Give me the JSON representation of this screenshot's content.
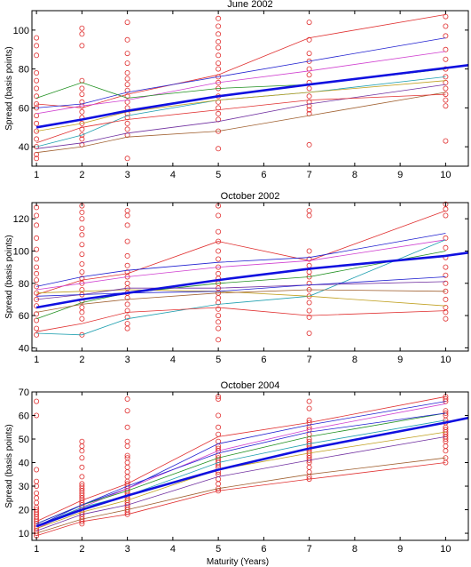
{
  "figure": {
    "xlabel": "Maturity (Years)",
    "colors": {
      "observed": "#e03030",
      "mean_fit": "#1010e0",
      "series": [
        "#e03030",
        "#2020d0",
        "#d040d0",
        "#209020",
        "#20a0b0",
        "#c0a020",
        "#7030a0",
        "#a06030"
      ]
    }
  },
  "chart_data": [
    {
      "type": "line",
      "title": "June 2002",
      "ylabel": "Spread (basis points)",
      "xlim": [
        0.9,
        10.5
      ],
      "ylim": [
        30,
        110
      ],
      "x_ticks": [
        1,
        2,
        3,
        4,
        5,
        6,
        7,
        8,
        9,
        10
      ],
      "y_ticks": [
        40,
        60,
        80,
        100
      ],
      "maturities": [
        1,
        2,
        3,
        5,
        7,
        10
      ],
      "mean_curve": {
        "x": [
          1,
          2,
          3,
          5,
          7,
          10,
          10.5
        ],
        "y": [
          50,
          54,
          58.5,
          66,
          72,
          80.5,
          82
        ]
      },
      "series": [
        {
          "values": [
            62,
            60,
            67,
            77,
            96,
            108
          ]
        },
        {
          "values": [
            60,
            62,
            68,
            76,
            84,
            96
          ]
        },
        {
          "values": [
            57,
            61,
            64,
            73,
            79,
            89
          ]
        },
        {
          "values": [
            65,
            73,
            65,
            70,
            72,
            80
          ]
        },
        {
          "values": [
            40,
            46,
            56,
            64,
            68,
            76
          ]
        },
        {
          "values": [
            48,
            52,
            58,
            64,
            68,
            74
          ]
        },
        {
          "values": [
            39,
            42,
            47,
            53,
            62,
            72
          ]
        },
        {
          "values": [
            37,
            40,
            45,
            48,
            56,
            68
          ]
        },
        {
          "values": [
            42,
            50,
            54,
            59,
            64,
            67
          ]
        }
      ],
      "observations": [
        {
          "x": 1,
          "y": [
            96,
            92,
            87,
            78,
            74,
            70,
            66,
            62,
            60,
            56,
            52,
            48,
            44,
            40,
            36,
            34
          ]
        },
        {
          "x": 2,
          "y": [
            101,
            98,
            92,
            74,
            70,
            67,
            63,
            61,
            58,
            55,
            52,
            49,
            46,
            44,
            41
          ]
        },
        {
          "x": 3,
          "y": [
            104,
            95,
            88,
            83,
            78,
            75,
            72,
            69,
            66,
            63,
            60,
            57,
            55,
            52,
            49,
            46,
            34
          ]
        },
        {
          "x": 5,
          "y": [
            106,
            102,
            98,
            94,
            91,
            87,
            83,
            80,
            76,
            73,
            70,
            66,
            63,
            60,
            57,
            54,
            48,
            39
          ]
        },
        {
          "x": 7,
          "y": [
            104,
            95,
            88,
            84,
            80,
            77,
            73,
            70,
            66,
            63,
            61,
            59,
            57,
            41
          ]
        },
        {
          "x": 10,
          "y": [
            107,
            102,
            97,
            90,
            85,
            80,
            76,
            73,
            70,
            67,
            64,
            61,
            43
          ]
        }
      ]
    },
    {
      "type": "line",
      "title": "October 2002",
      "ylabel": "Spread (basis points)",
      "xlim": [
        0.9,
        10.5
      ],
      "ylim": [
        38,
        130
      ],
      "x_ticks": [
        1,
        2,
        3,
        4,
        5,
        6,
        7,
        8,
        9,
        10
      ],
      "y_ticks": [
        40,
        60,
        80,
        100,
        120
      ],
      "maturities": [
        1,
        2,
        3,
        5,
        7,
        10
      ],
      "mean_curve": {
        "x": [
          1,
          2,
          3,
          5,
          7,
          10,
          10.5
        ],
        "y": [
          65,
          70,
          74,
          82,
          89,
          97,
          99
        ]
      },
      "series": [
        {
          "values": [
            73,
            82,
            86,
            106,
            94,
            125
          ]
        },
        {
          "values": [
            78,
            84,
            88,
            93,
            96,
            111
          ]
        },
        {
          "values": [
            76,
            80,
            84,
            90,
            94,
            107
          ]
        },
        {
          "values": [
            58,
            68,
            74,
            80,
            84,
            100
          ]
        },
        {
          "values": [
            49,
            48,
            58,
            67,
            72,
            107
          ]
        },
        {
          "values": [
            74,
            75,
            76,
            75,
            72,
            66
          ]
        },
        {
          "values": [
            70,
            73,
            77,
            77,
            79,
            81
          ]
        },
        {
          "values": [
            62,
            67,
            70,
            74,
            76,
            75
          ]
        },
        {
          "values": [
            50,
            55,
            62,
            65,
            60,
            63
          ]
        },
        {
          "values": [
            72,
            73,
            74,
            75,
            79,
            84
          ]
        }
      ],
      "observations": [
        {
          "x": 1,
          "y": [
            127,
            122,
            116,
            108,
            101,
            95,
            90,
            86,
            82,
            78,
            74,
            70,
            66,
            61,
            57,
            52,
            48
          ]
        },
        {
          "x": 2,
          "y": [
            128,
            124,
            120,
            114,
            110,
            104,
            98,
            92,
            87,
            83,
            80,
            76,
            73,
            69,
            65,
            62,
            58,
            48
          ]
        },
        {
          "x": 3,
          "y": [
            125,
            122,
            116,
            106,
            97,
            91,
            87,
            84,
            80,
            77,
            74,
            71,
            67,
            63,
            59,
            55,
            52
          ]
        },
        {
          "x": 5,
          "y": [
            128,
            122,
            112,
            106,
            100,
            95,
            90,
            86,
            83,
            80,
            77,
            74,
            71,
            68,
            64,
            60,
            56,
            52,
            45
          ]
        },
        {
          "x": 7,
          "y": [
            125,
            122,
            100,
            95,
            91,
            87,
            84,
            80,
            76,
            72,
            68,
            63,
            59,
            49
          ]
        },
        {
          "x": 10,
          "y": [
            129,
            126,
            122,
            108,
            102,
            96,
            90,
            85,
            80,
            75,
            70,
            65,
            62,
            58
          ]
        }
      ]
    },
    {
      "type": "line",
      "title": "October 2004",
      "ylabel": "Spread (basis points)",
      "xlim": [
        0.9,
        10.5
      ],
      "ylim": [
        7,
        70
      ],
      "x_ticks": [
        1,
        2,
        3,
        4,
        5,
        6,
        7,
        8,
        9,
        10
      ],
      "y_ticks": [
        10,
        20,
        30,
        40,
        50,
        60,
        70
      ],
      "maturities": [
        1,
        2,
        3,
        5,
        7,
        10
      ],
      "mean_curve": {
        "x": [
          1,
          2,
          3,
          5,
          7,
          10,
          10.5
        ],
        "y": [
          13,
          20,
          26,
          37,
          46,
          57,
          59
        ]
      },
      "series": [
        {
          "values": [
            15,
            24,
            31,
            51,
            57,
            68
          ]
        },
        {
          "values": [
            13,
            22,
            29,
            48,
            56,
            66
          ]
        },
        {
          "values": [
            12,
            21,
            29,
            45,
            54,
            65
          ]
        },
        {
          "values": [
            14,
            22,
            28,
            42,
            51,
            61
          ]
        },
        {
          "values": [
            13,
            21,
            26,
            40,
            48,
            58
          ]
        },
        {
          "values": [
            12,
            19,
            24,
            37,
            44,
            53
          ]
        },
        {
          "values": [
            11,
            18,
            22,
            34,
            41,
            51
          ]
        },
        {
          "values": [
            10,
            16,
            20,
            29,
            35,
            42
          ]
        },
        {
          "values": [
            9,
            15,
            18,
            28,
            33,
            40
          ]
        },
        {
          "values": [
            14,
            22,
            30,
            44,
            53,
            61
          ]
        }
      ],
      "observations": [
        {
          "x": 1,
          "y": [
            66,
            60,
            37,
            32,
            30,
            27,
            25,
            23,
            21,
            20,
            19,
            18,
            17,
            16,
            15,
            14,
            13,
            12,
            11,
            10,
            9
          ]
        },
        {
          "x": 2,
          "y": [
            49,
            47,
            45,
            42,
            38,
            34,
            31,
            30,
            29,
            28,
            27,
            26,
            25,
            24,
            23,
            22,
            21,
            20,
            19,
            18,
            17,
            16,
            15,
            14
          ]
        },
        {
          "x": 3,
          "y": [
            67,
            62,
            55,
            49,
            47,
            43,
            42,
            40,
            38,
            36,
            34,
            32,
            31,
            30,
            29,
            28,
            27,
            26,
            25,
            24,
            23,
            22,
            21,
            20,
            19,
            18
          ]
        },
        {
          "x": 5,
          "y": [
            68,
            67,
            60,
            55,
            52,
            49,
            47,
            46,
            45,
            43,
            42,
            41,
            40,
            39,
            38,
            36,
            35,
            33,
            31,
            29,
            28
          ]
        },
        {
          "x": 7,
          "y": [
            66,
            63,
            58,
            57,
            55,
            54,
            52,
            50,
            49,
            48,
            47,
            46,
            45,
            44,
            43,
            42,
            41,
            40,
            38,
            36,
            34,
            33
          ]
        },
        {
          "x": 10,
          "y": [
            68,
            67,
            66,
            62,
            61,
            60,
            58,
            57,
            55,
            54,
            53,
            52,
            51,
            50,
            49,
            47,
            45,
            42,
            40
          ]
        }
      ]
    }
  ]
}
